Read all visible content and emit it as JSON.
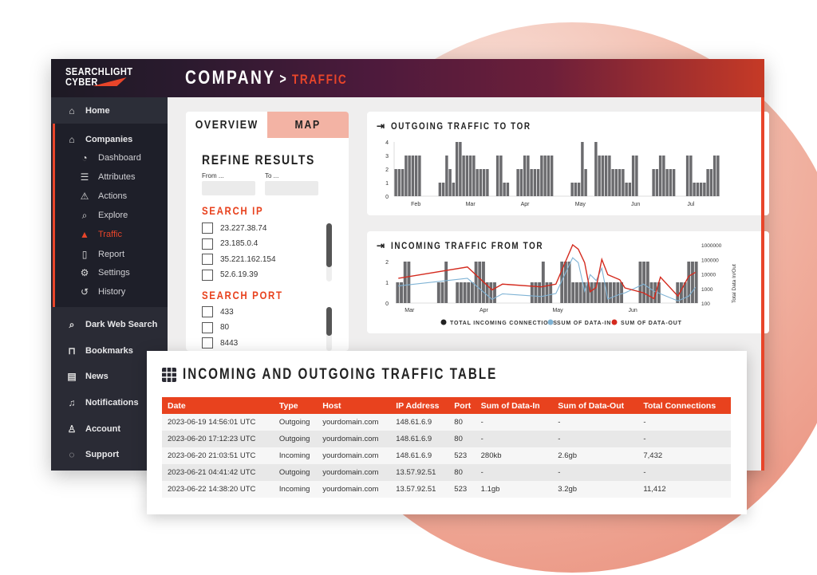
{
  "header": {
    "logo_line1": "SEARCHLIGHT",
    "logo_line2": "CYBER",
    "title": "COMPANY",
    "separator": ">",
    "crumb": "TRAFFIC"
  },
  "sidebar": {
    "home": "Home",
    "companies": "Companies",
    "sub": [
      {
        "label": "Dashboard",
        "icon": "gauge-icon"
      },
      {
        "label": "Attributes",
        "icon": "list-icon"
      },
      {
        "label": "Actions",
        "icon": "warning-image-icon"
      },
      {
        "label": "Explore",
        "icon": "search-icon"
      },
      {
        "label": "Traffic",
        "icon": "traffic-cone-icon"
      },
      {
        "label": "Report",
        "icon": "file-icon"
      },
      {
        "label": "Settings",
        "icon": "gear-icon"
      },
      {
        "label": "History",
        "icon": "history-icon"
      }
    ],
    "bottom": [
      {
        "label": "Dark Web Search",
        "icon": "search-icon"
      },
      {
        "label": "Bookmarks",
        "icon": "bookmark-icon"
      },
      {
        "label": "News",
        "icon": "newspaper-icon"
      },
      {
        "label": "Notifications",
        "icon": "bell-icon"
      },
      {
        "label": "Account",
        "icon": "user-icon"
      },
      {
        "label": "Support",
        "icon": "chat-icon"
      }
    ]
  },
  "refine": {
    "tab_overview": "OVERVIEW",
    "tab_map": "MAP",
    "title": "REFINE RESULTS",
    "from_label": "From ...",
    "to_label": "To ...",
    "from_value": "",
    "to_value": "",
    "ip_title": "SEARCH IP",
    "ips": [
      "23.227.38.74",
      "23.185.0.4",
      "35.221.162.154",
      "52.6.19.39"
    ],
    "port_title": "SEARCH PORT",
    "ports": [
      "433",
      "80",
      "8443"
    ]
  },
  "colors": {
    "accent": "#e8421e",
    "bars": "#6b6b6e",
    "data_in": "#7fb3d5",
    "data_out": "#d42a1e",
    "map_tab": "#f3b3a4"
  },
  "chart_data": [
    {
      "type": "bar",
      "title": "OUTGOING TRAFFIC TO TOR",
      "ylim": [
        0,
        4
      ],
      "yticks": [
        "0",
        "1",
        "2",
        "3",
        "4"
      ],
      "values": [
        2,
        2,
        2,
        3,
        3,
        3,
        3,
        3,
        0,
        0,
        0,
        0,
        0,
        1,
        1,
        3,
        2,
        1,
        4,
        4,
        3,
        3,
        3,
        3,
        2,
        2,
        2,
        2,
        0,
        0,
        3,
        3,
        1,
        1,
        0,
        0,
        2,
        2,
        3,
        3,
        2,
        2,
        2,
        3,
        3,
        3,
        3,
        0,
        0,
        0,
        0,
        0,
        1,
        1,
        1,
        4,
        2,
        0,
        0,
        4,
        3,
        3,
        3,
        3,
        2,
        2,
        2,
        2,
        1,
        1,
        3,
        3,
        0,
        0,
        0,
        0,
        2,
        2,
        3,
        3,
        2,
        2,
        2,
        0,
        0,
        0,
        3,
        3,
        1,
        1,
        1,
        1,
        2,
        2,
        3,
        3
      ],
      "month_labels": [
        {
          "label": "Feb",
          "index": 6.4
        },
        {
          "label": "Mar",
          "index": 22.5
        },
        {
          "label": "Apr",
          "index": 38.6
        },
        {
          "label": "May",
          "index": 54.9
        },
        {
          "label": "Jun",
          "index": 71.2
        },
        {
          "label": "Jul",
          "index": 87.5
        }
      ]
    },
    {
      "type": "bar+line",
      "title": "INCOMING TRAFFIC FROM TOR",
      "ylim": [
        0,
        2
      ],
      "yticks": [
        "0",
        "1",
        "2"
      ],
      "y2label": "Total Data In/Out",
      "y2lim": [
        100,
        1000000
      ],
      "y2ticks": [
        "100",
        "1000",
        "10000",
        "100000",
        "1000000"
      ],
      "values": [
        1,
        1,
        2,
        2,
        0,
        0,
        0,
        0,
        0,
        0,
        0,
        1,
        1,
        2,
        0,
        0,
        1,
        1,
        1,
        1,
        1,
        2,
        2,
        2,
        1,
        1,
        1,
        0,
        0,
        0,
        0,
        0,
        0,
        0,
        0,
        0,
        1,
        1,
        1,
        2,
        1,
        1,
        0,
        0,
        2,
        2,
        2,
        1,
        1,
        1,
        1,
        1,
        1,
        1,
        1,
        1,
        1,
        1,
        1,
        1,
        1,
        0,
        0,
        0,
        0,
        2,
        2,
        2,
        1,
        1,
        1,
        0,
        0,
        0,
        0,
        1,
        1,
        1,
        2,
        2,
        2
      ],
      "series": [
        {
          "name": "SUM OF DATA-IN",
          "x": [
            0.7,
            19.2,
            25.8,
            28.6,
            39,
            42.9,
            47.4,
            48.9,
            50.6,
            52.1,
            53.7,
            55.2,
            56.8,
            60,
            61.4,
            66.4,
            69.2,
            75.6,
            78.5,
            80.3
          ],
          "values": [
            1500,
            5000,
            180,
            430,
            280,
            450,
            130000,
            60000,
            650,
            9000,
            3500,
            25000,
            190,
            400,
            500,
            2000,
            650,
            140,
            300,
            1200
          ]
        },
        {
          "name": "SUM OF DATA-OUT",
          "x": [
            0.7,
            19.2,
            25.8,
            28.6,
            39,
            42.9,
            47.4,
            48.9,
            50.6,
            52.1,
            53.7,
            55.2,
            56.8,
            60,
            61.4,
            66.4,
            69.2,
            70.9,
            75.6,
            78.5,
            80.3
          ],
          "values": [
            5000,
            30000,
            800,
            2000,
            1300,
            2000,
            1000000,
            500000,
            60000,
            600,
            1200,
            100000,
            9000,
            4000,
            1100,
            500,
            200,
            6000,
            300,
            7000,
            13000
          ]
        }
      ],
      "legend": [
        "TOTAL INCOMING CONNECTIONS",
        "SUM OF DATA-IN",
        "SUM OF DATA-OUT"
      ],
      "month_labels": [
        {
          "label": "Mar",
          "index": 3.7
        },
        {
          "label": "Apr",
          "index": 23.6
        },
        {
          "label": "May",
          "index": 43.4
        },
        {
          "label": "Jun",
          "index": 63.5
        }
      ]
    }
  ],
  "table": {
    "title": "INCOMING AND OUTGOING TRAFFIC TABLE",
    "columns": [
      "Date",
      "Type",
      "Host",
      "IP Address",
      "Port",
      "Sum of Data-In",
      "Sum of Data-Out",
      "Total Connections"
    ],
    "rows": [
      [
        "2023-06-19 14:56:01 UTC",
        "Outgoing",
        "yourdomain.com",
        "148.61.6.9",
        "80",
        "-",
        "-",
        "-"
      ],
      [
        "2023-06-20 17:12:23 UTC",
        "Outgoing",
        "yourdomain.com",
        "148.61.6.9",
        "80",
        "-",
        "-",
        "-"
      ],
      [
        "2023-06-20 21:03:51 UTC",
        "Incoming",
        "yourdomain.com",
        "148.61.6.9",
        "523",
        "280kb",
        "2.6gb",
        "7,432"
      ],
      [
        "2023-06-21 04:41:42 UTC",
        "Outgoing",
        "yourdomain.com",
        "13.57.92.51",
        "80",
        "-",
        "-",
        "-"
      ],
      [
        "2023-06-22 14:38:20 UTC",
        "Incoming",
        "yourdomain.com",
        "13.57.92.51",
        "523",
        "1.1gb",
        "3.2gb",
        "11,412"
      ]
    ]
  }
}
